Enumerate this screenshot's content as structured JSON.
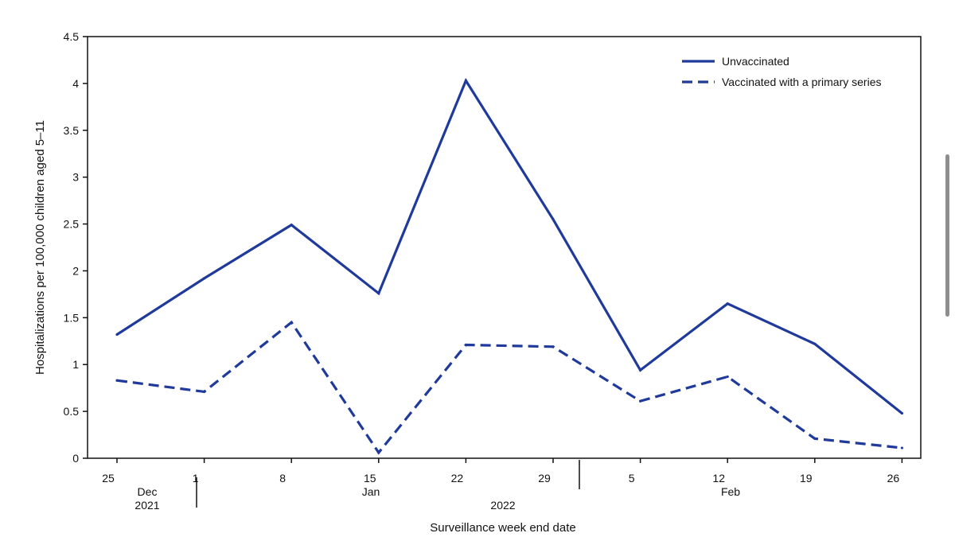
{
  "chart_data": {
    "type": "line",
    "x": [
      "25",
      "1",
      "8",
      "15",
      "22",
      "29",
      "5",
      "12",
      "19",
      "26"
    ],
    "series": [
      {
        "name": "Unvaccinated",
        "style": "solid",
        "values": [
          1.32,
          1.92,
          2.49,
          1.76,
          4.03,
          2.55,
          0.94,
          1.65,
          1.22,
          0.48
        ]
      },
      {
        "name": "Vaccinated with a primary series",
        "style": "dashed",
        "values": [
          0.83,
          0.71,
          1.45,
          0.06,
          1.21,
          1.19,
          0.61,
          0.87,
          0.21,
          0.11
        ]
      }
    ],
    "month_labels": [
      {
        "month": "Dec",
        "year": "2021"
      },
      {
        "month": "Jan",
        "year": ""
      },
      {
        "month": "Feb",
        "year": ""
      }
    ],
    "year_label": "2022",
    "title": "",
    "xlabel": "Surveillance week end date",
    "ylabel": "Hospitalizations per 100,000 children aged 5–11",
    "ylim": [
      0,
      4.5
    ],
    "yticks": [
      "0",
      "0.5",
      "1",
      "1.5",
      "2",
      "2.5",
      "3",
      "3.5",
      "4",
      "4.5"
    ],
    "grid": false,
    "legend_position": "top-right",
    "line_color": "#1f3a9a"
  }
}
